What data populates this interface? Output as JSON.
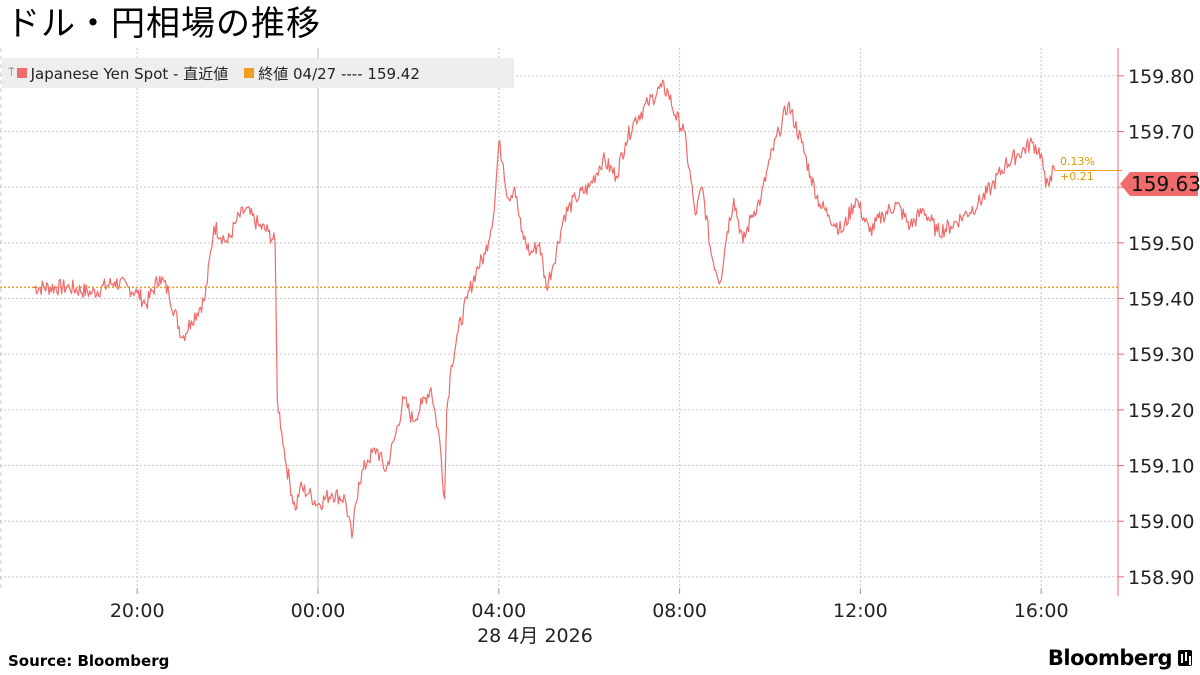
{
  "title": "ドル・円相場の推移",
  "legend": {
    "series_label": "Japanese Yen Spot - 直近値",
    "series_color": "#f06b6b",
    "close_label": "終値 04/27 ---- 159.42",
    "close_color": "#f0a020"
  },
  "source": "Source:  Bloomberg",
  "brand": "Bloomberg",
  "chart_data": {
    "type": "line",
    "title": "ドル・円相場の推移",
    "xlabel": "28 4月  2026",
    "ylabel": "",
    "x_ticks": [
      "20:00",
      "00:00",
      "04:00",
      "08:00",
      "12:00",
      "16:00"
    ],
    "x_hours": [
      -6.3,
      -5.5,
      -5.0,
      -4.5,
      -4.2,
      -4.0,
      -3.8,
      -3.5,
      -3.3,
      -3.0,
      -2.8,
      -2.5,
      -2.3,
      -2.0,
      -1.8,
      -1.6,
      -1.3,
      -1.1,
      -0.95,
      -0.9,
      -0.8,
      -0.7,
      -0.5,
      -0.4,
      -0.2,
      0.0,
      0.3,
      0.6,
      0.75,
      0.9,
      1.1,
      1.3,
      1.5,
      1.7,
      1.9,
      2.1,
      2.3,
      2.5,
      2.7,
      2.8,
      2.85,
      2.95,
      3.1,
      3.3,
      3.5,
      3.7,
      3.9,
      4.0,
      4.1,
      4.2,
      4.35,
      4.5,
      4.7,
      4.9,
      5.05,
      5.2,
      5.45,
      5.7,
      6.0,
      6.3,
      6.6,
      6.8,
      7.0,
      7.3,
      7.6,
      7.75,
      7.9,
      8.1,
      8.3,
      8.35,
      8.5,
      8.7,
      8.9,
      9.05,
      9.2,
      9.4,
      9.6,
      9.8,
      10.0,
      10.2,
      10.4,
      10.7,
      10.9,
      11.1,
      11.3,
      11.6,
      11.9,
      12.2,
      12.5,
      12.8,
      13.1,
      13.4,
      13.7,
      14.0,
      14.3,
      14.6,
      14.9,
      15.2,
      15.5,
      15.8,
      16.0,
      16.1,
      16.2,
      16.3
    ],
    "values": [
      159.42,
      159.42,
      159.41,
      159.43,
      159.42,
      159.41,
      159.39,
      159.44,
      159.41,
      159.33,
      159.36,
      159.4,
      159.53,
      159.5,
      159.54,
      159.56,
      159.53,
      159.52,
      159.5,
      159.22,
      159.16,
      159.1,
      159.02,
      159.06,
      159.05,
      159.03,
      159.05,
      159.04,
      158.97,
      159.07,
      159.11,
      159.13,
      159.09,
      159.15,
      159.22,
      159.18,
      159.21,
      159.24,
      159.14,
      159.04,
      159.2,
      159.28,
      159.34,
      159.4,
      159.45,
      159.48,
      159.56,
      159.68,
      159.64,
      159.58,
      159.6,
      159.52,
      159.48,
      159.5,
      159.42,
      159.46,
      159.55,
      159.58,
      159.6,
      159.65,
      159.62,
      159.68,
      159.72,
      159.75,
      159.78,
      159.77,
      159.73,
      159.7,
      159.58,
      159.55,
      159.6,
      159.48,
      159.43,
      159.52,
      159.58,
      159.5,
      159.55,
      159.58,
      159.65,
      159.7,
      159.75,
      159.68,
      159.62,
      159.57,
      159.55,
      159.52,
      159.58,
      159.52,
      159.55,
      159.57,
      159.53,
      159.56,
      159.52,
      159.53,
      159.55,
      159.57,
      159.6,
      159.64,
      159.66,
      159.68,
      159.66,
      159.6,
      159.62,
      159.63
    ],
    "close_value": 159.42,
    "last_value": "159.63",
    "change_pct": "0.13%",
    "change_abs": "+0.21",
    "ylim": [
      158.88,
      159.85
    ],
    "y_ticks": [
      "159.80",
      "159.70",
      "159.60",
      "159.50",
      "159.40",
      "159.30",
      "159.20",
      "159.10",
      "159.00",
      "158.90"
    ],
    "grid": true,
    "legend_position": "top-left"
  }
}
